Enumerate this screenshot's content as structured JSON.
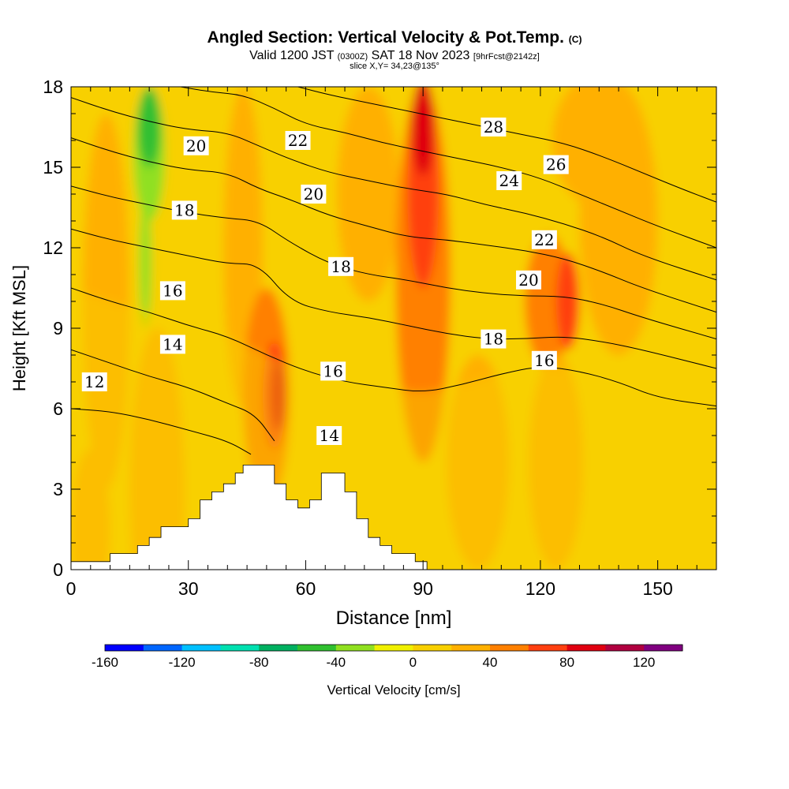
{
  "header": {
    "title": "Angled Section: Vertical Velocity & Pot.Temp.",
    "title_suffix": "(C)",
    "subtitle_a": "Valid 1200 JST",
    "subtitle_b": "(0300Z)",
    "subtitle_c": "SAT 18 Nov 2023",
    "subtitle_d": "[9hrFcst@2142z]",
    "slice": "slice X,Y= 34,23@135°"
  },
  "chart_data": {
    "type": "heatmap",
    "xlabel": "Distance [nm]",
    "ylabel": "Height [Kft MSL]",
    "xlim": [
      0,
      165
    ],
    "ylim": [
      0,
      18
    ],
    "x_ticks": [
      0,
      30,
      60,
      90,
      120,
      150
    ],
    "y_ticks": [
      0,
      3,
      6,
      9,
      12,
      15,
      18
    ],
    "fill_variable": "Vertical Velocity [cm/s]",
    "contour_variable": "Potential temperature (C)",
    "background_band_value": 10,
    "regions": [
      {
        "x": 0,
        "y": 0,
        "rx": 165,
        "ry": 18,
        "value": 5
      },
      {
        "x": 5,
        "y": 1.5,
        "rx": 5,
        "ry": 3,
        "value": 20
      },
      {
        "x": 9,
        "y": 10,
        "rx": 6,
        "ry": 7,
        "value": 20
      },
      {
        "x": 22,
        "y": 3,
        "rx": 7,
        "ry": 6,
        "value": 20
      },
      {
        "x": 20,
        "y": 15.5,
        "rx": 4,
        "ry": 2.5,
        "value": -40
      },
      {
        "x": 19,
        "y": 11.5,
        "rx": 1.5,
        "ry": 2.5,
        "value": -40
      },
      {
        "x": 20,
        "y": 16.5,
        "rx": 3,
        "ry": 1.5,
        "value": -50
      },
      {
        "x": 44,
        "y": 12,
        "rx": 5,
        "ry": 6,
        "value": 20
      },
      {
        "x": 50,
        "y": 6.5,
        "rx": 6,
        "ry": 4,
        "value": 40
      },
      {
        "x": 52,
        "y": 6.5,
        "rx": 3,
        "ry": 2,
        "value": 60
      },
      {
        "x": 53,
        "y": 6.5,
        "rx": 1.8,
        "ry": 1.3,
        "value": 80
      },
      {
        "x": 76,
        "y": 14,
        "rx": 8,
        "ry": 4,
        "value": 20
      },
      {
        "x": 90,
        "y": 11,
        "rx": 7,
        "ry": 7,
        "value": 40
      },
      {
        "x": 90,
        "y": 14,
        "rx": 4,
        "ry": 3.5,
        "value": 60
      },
      {
        "x": 90,
        "y": 16.5,
        "rx": 3,
        "ry": 1.8,
        "value": 80
      },
      {
        "x": 104,
        "y": 4,
        "rx": 8,
        "ry": 4,
        "value": 20
      },
      {
        "x": 122,
        "y": 10,
        "rx": 6,
        "ry": 2.5,
        "value": 40
      },
      {
        "x": 127,
        "y": 10,
        "rx": 3,
        "ry": 1.8,
        "value": 60
      },
      {
        "x": 126,
        "y": 5.5,
        "rx": 2,
        "ry": 0.6,
        "value": 60
      },
      {
        "x": 124,
        "y": 4,
        "rx": 7,
        "ry": 4,
        "value": 20
      },
      {
        "x": 140,
        "y": 13,
        "rx": 10,
        "ry": 5,
        "value": 20
      },
      {
        "x": 135,
        "y": 16,
        "rx": 12,
        "ry": 2.5,
        "value": 30
      }
    ],
    "terrain": [
      [
        0,
        0.3
      ],
      [
        10,
        0.3
      ],
      [
        10,
        0.6
      ],
      [
        17,
        0.6
      ],
      [
        17,
        0.9
      ],
      [
        20,
        0.9
      ],
      [
        20,
        1.2
      ],
      [
        23,
        1.2
      ],
      [
        23,
        1.6
      ],
      [
        30,
        1.6
      ],
      [
        30,
        1.9
      ],
      [
        33,
        1.9
      ],
      [
        33,
        2.6
      ],
      [
        36,
        2.6
      ],
      [
        36,
        2.9
      ],
      [
        39,
        2.9
      ],
      [
        39,
        3.2
      ],
      [
        42,
        3.2
      ],
      [
        42,
        3.6
      ],
      [
        44,
        3.6
      ],
      [
        44,
        3.9
      ],
      [
        52,
        3.9
      ],
      [
        52,
        3.2
      ],
      [
        55,
        3.2
      ],
      [
        55,
        2.6
      ],
      [
        58,
        2.6
      ],
      [
        58,
        2.3
      ],
      [
        61,
        2.3
      ],
      [
        61,
        2.6
      ],
      [
        64,
        2.6
      ],
      [
        64,
        3.6
      ],
      [
        70,
        3.6
      ],
      [
        70,
        2.9
      ],
      [
        73,
        2.9
      ],
      [
        73,
        1.9
      ],
      [
        76,
        1.9
      ],
      [
        76,
        1.2
      ],
      [
        79,
        1.2
      ],
      [
        79,
        0.9
      ],
      [
        82,
        0.9
      ],
      [
        82,
        0.6
      ],
      [
        88,
        0.6
      ],
      [
        88,
        0.3
      ],
      [
        91,
        0.3
      ],
      [
        91,
        0
      ]
    ],
    "theta_contours": [
      {
        "level": 12,
        "pts": [
          [
            0,
            6
          ],
          [
            10,
            5.9
          ],
          [
            20,
            5.6
          ],
          [
            30,
            5.2
          ],
          [
            40,
            4.8
          ],
          [
            46,
            4.3
          ]
        ]
      },
      {
        "level": 14,
        "pts": [
          [
            0,
            8.2
          ],
          [
            10,
            7.7
          ],
          [
            20,
            7.2
          ],
          [
            30,
            6.8
          ],
          [
            40,
            6.2
          ],
          [
            47,
            5.8
          ],
          [
            52,
            4.8
          ]
        ]
      },
      {
        "level": 16,
        "pts": [
          [
            0,
            10.5
          ],
          [
            10,
            10
          ],
          [
            20,
            9.6
          ],
          [
            30,
            9.1
          ],
          [
            40,
            8.7
          ],
          [
            50,
            8
          ],
          [
            60,
            7.4
          ],
          [
            70,
            7
          ],
          [
            80,
            6.8
          ],
          [
            90,
            6.6
          ],
          [
            100,
            6.9
          ],
          [
            110,
            7.3
          ],
          [
            120,
            7.6
          ],
          [
            130,
            7.4
          ],
          [
            140,
            7
          ],
          [
            150,
            6.4
          ],
          [
            165,
            6.1
          ]
        ]
      },
      {
        "level": 18,
        "pts": [
          [
            0,
            12.7
          ],
          [
            10,
            12.3
          ],
          [
            20,
            12
          ],
          [
            30,
            11.7
          ],
          [
            40,
            11.4
          ],
          [
            48,
            11.4
          ],
          [
            56,
            10
          ],
          [
            66,
            9.6
          ],
          [
            76,
            9.4
          ],
          [
            86,
            9.1
          ],
          [
            96,
            8.8
          ],
          [
            106,
            8.6
          ],
          [
            116,
            8.6
          ],
          [
            126,
            8.7
          ],
          [
            136,
            8.5
          ],
          [
            146,
            8.2
          ],
          [
            165,
            7.5
          ]
        ]
      },
      {
        "level": 20,
        "pts": [
          [
            0,
            14.3
          ],
          [
            10,
            13.9
          ],
          [
            20,
            13.6
          ],
          [
            30,
            13.3
          ],
          [
            40,
            13.1
          ],
          [
            48,
            13
          ],
          [
            56,
            12.2
          ],
          [
            66,
            11.4
          ],
          [
            76,
            11
          ],
          [
            86,
            10.8
          ],
          [
            96,
            10.5
          ],
          [
            106,
            10.3
          ],
          [
            116,
            10.2
          ],
          [
            126,
            10.2
          ],
          [
            136,
            9.9
          ],
          [
            146,
            9.4
          ],
          [
            165,
            8.6
          ]
        ]
      },
      {
        "level": 22,
        "pts": [
          [
            0,
            16.1
          ],
          [
            10,
            15.6
          ],
          [
            20,
            15.2
          ],
          [
            30,
            14.9
          ],
          [
            40,
            14.8
          ],
          [
            48,
            14.2
          ],
          [
            56,
            13.8
          ],
          [
            66,
            13.2
          ],
          [
            76,
            12.8
          ],
          [
            86,
            12.4
          ],
          [
            96,
            12.3
          ],
          [
            106,
            12.1
          ],
          [
            116,
            11.9
          ],
          [
            126,
            11.6
          ],
          [
            136,
            11.1
          ],
          [
            146,
            10.5
          ],
          [
            165,
            9.6
          ]
        ]
      },
      {
        "level": 24,
        "pts": [
          [
            0,
            17.6
          ],
          [
            10,
            17.1
          ],
          [
            20,
            16.7
          ],
          [
            30,
            16.4
          ],
          [
            40,
            16.3
          ],
          [
            48,
            15.8
          ],
          [
            56,
            15.3
          ],
          [
            66,
            14.8
          ],
          [
            76,
            14.5
          ],
          [
            86,
            14.2
          ],
          [
            96,
            14
          ],
          [
            106,
            13.6
          ],
          [
            116,
            13.3
          ],
          [
            126,
            12.9
          ],
          [
            136,
            12.4
          ],
          [
            146,
            11.7
          ],
          [
            165,
            10.8
          ]
        ]
      },
      {
        "level": 26,
        "pts": [
          [
            28,
            18
          ],
          [
            36,
            17.8
          ],
          [
            44,
            17.7
          ],
          [
            52,
            17.2
          ],
          [
            60,
            16.6
          ],
          [
            70,
            16.3
          ],
          [
            80,
            15.9
          ],
          [
            90,
            15.6
          ],
          [
            100,
            15.3
          ],
          [
            110,
            15
          ],
          [
            120,
            14.6
          ],
          [
            130,
            14
          ],
          [
            140,
            13.4
          ],
          [
            150,
            12.8
          ],
          [
            165,
            12
          ]
        ]
      },
      {
        "level": 28,
        "pts": [
          [
            58,
            18
          ],
          [
            66,
            17.7
          ],
          [
            76,
            17.4
          ],
          [
            86,
            17.1
          ],
          [
            96,
            16.8
          ],
          [
            106,
            16.5
          ],
          [
            116,
            16.2
          ],
          [
            126,
            15.9
          ],
          [
            136,
            15.4
          ],
          [
            146,
            14.8
          ],
          [
            156,
            14.2
          ],
          [
            165,
            13.7
          ]
        ]
      }
    ],
    "contour_labels": [
      {
        "text": "12",
        "x": 6,
        "y": 7
      },
      {
        "text": "14",
        "x": 26,
        "y": 8.4
      },
      {
        "text": "16",
        "x": 26,
        "y": 10.4
      },
      {
        "text": "18",
        "x": 29,
        "y": 13.4
      },
      {
        "text": "20",
        "x": 32,
        "y": 15.8
      },
      {
        "text": "16",
        "x": 67,
        "y": 7.4
      },
      {
        "text": "14",
        "x": 66,
        "y": 5
      },
      {
        "text": "18",
        "x": 69,
        "y": 11.3
      },
      {
        "text": "20",
        "x": 62,
        "y": 14
      },
      {
        "text": "22",
        "x": 58,
        "y": 16
      },
      {
        "text": "18",
        "x": 108,
        "y": 8.6
      },
      {
        "text": "16",
        "x": 121,
        "y": 7.8
      },
      {
        "text": "20",
        "x": 117,
        "y": 10.8
      },
      {
        "text": "22",
        "x": 121,
        "y": 12.3
      },
      {
        "text": "24",
        "x": 112,
        "y": 14.5
      },
      {
        "text": "26",
        "x": 124,
        "y": 15.1
      },
      {
        "text": "28",
        "x": 108,
        "y": 16.5
      }
    ],
    "colorbar": {
      "label": "Vertical Velocity [cm/s]",
      "min": -160,
      "max": 140,
      "ticks": [
        -160,
        -120,
        -80,
        -40,
        0,
        40,
        80,
        120
      ],
      "colors": [
        "#0000ff",
        "#0066ff",
        "#00c0ff",
        "#00e0b0",
        "#00b060",
        "#30c030",
        "#90e020",
        "#f0f000",
        "#f8d000",
        "#ffb000",
        "#ff8000",
        "#ff4010",
        "#e00010",
        "#b00040",
        "#800080"
      ]
    }
  }
}
